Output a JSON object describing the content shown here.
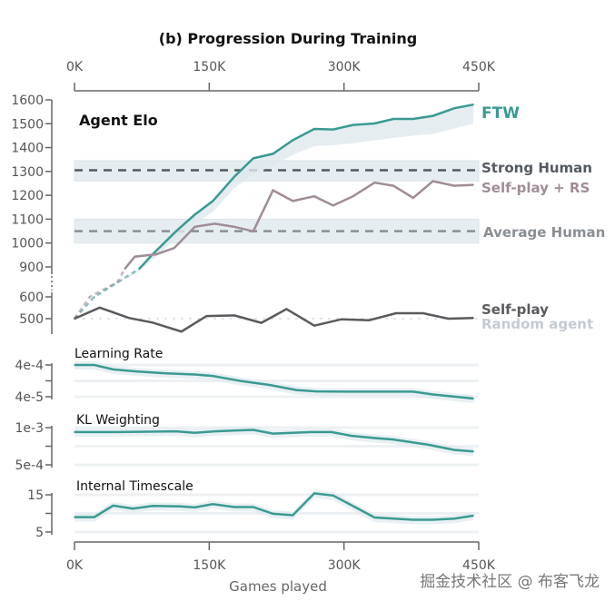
{
  "chart_data": {
    "type": "line",
    "title": "(b) Progression During Training",
    "xlabel": "Games played",
    "x_ticks": [
      "0K",
      "150K",
      "300K",
      "450K"
    ],
    "x_tick_values": [
      0,
      150,
      300,
      450
    ],
    "xlim": [
      0,
      450
    ],
    "x_units": "thousands of games",
    "colors": {
      "ftw": "#3a9a92",
      "selfplay_rs": "#a08c96",
      "selfplay": "#5a5a5e",
      "strong_human": "#555a60",
      "average_human": "#8a8f94",
      "random_agent": "#c4ccd2",
      "band": "#dfe9ee"
    },
    "elo_panel": {
      "title": "Agent Elo",
      "y_ticks": [
        500,
        600,
        900,
        1000,
        1100,
        1200,
        1300,
        1400,
        1500,
        1600
      ],
      "y_axis_break": [
        600,
        900
      ],
      "series": [
        {
          "name": "FTW",
          "x": [
            0,
            22,
            72,
            87,
            113,
            134,
            154,
            178,
            199,
            221,
            243,
            267,
            288,
            310,
            334,
            355,
            377,
            399,
            423,
            444
          ],
          "y": [
            500,
            600,
            880,
            953,
            1049,
            1119,
            1176,
            1278,
            1355,
            1374,
            1431,
            1478,
            1476,
            1495,
            1501,
            1520,
            1520,
            1533,
            1565,
            1580
          ],
          "band_lower": [
            500,
            600,
            860,
            930,
            1020,
            1080,
            1130,
            1230,
            1290,
            1323,
            1370,
            1406,
            1410,
            1418,
            1430,
            1440,
            1450,
            1457,
            1480,
            1501
          ],
          "dashed_until": 72
        },
        {
          "name": "Self-play + RS",
          "x": [
            0,
            17,
            48,
            56,
            67,
            91,
            111,
            134,
            156,
            178,
            199,
            221,
            243,
            267,
            288,
            310,
            334,
            355,
            377,
            399,
            423,
            444
          ],
          "y": [
            500,
            600,
            750,
            880,
            943,
            953,
            979,
            1068,
            1081,
            1068,
            1049,
            1221,
            1176,
            1196,
            1157,
            1196,
            1253,
            1240,
            1189,
            1259,
            1240,
            1244
          ],
          "dashed_until": 56
        },
        {
          "name": "Self-play",
          "x": [
            0,
            28,
            61,
            87,
            119,
            147,
            178,
            208,
            236,
            267,
            297,
            328,
            358,
            388,
            416,
            444
          ],
          "y": [
            500,
            551,
            503,
            482,
            441,
            512,
            515,
            481,
            544,
            468,
            497,
            493,
            525,
            525,
            500,
            503
          ]
        }
      ],
      "reference_lines": [
        {
          "name": "Strong Human",
          "value": 1305,
          "band": [
            1260,
            1345
          ]
        },
        {
          "name": "Average Human",
          "value": 1050,
          "band": [
            1000,
            1100
          ]
        },
        {
          "name": "Random agent",
          "value": 500
        }
      ]
    },
    "lr_panel": {
      "title": "Learning Rate",
      "scale": "log",
      "y_ticks": [
        "4e-4",
        "4e-5"
      ],
      "y_tick_values": [
        0.0004,
        4e-05
      ],
      "x": [
        0,
        22,
        43,
        69,
        100,
        134,
        154,
        186,
        217,
        247,
        269,
        308,
        377,
        399,
        444
      ],
      "y": [
        0.0004,
        0.0004,
        0.00029,
        0.00025,
        0.00022,
        0.0002,
        0.00018,
        0.000124,
        9.4e-05,
        6.5e-05,
        5.9e-05,
        5.8e-05,
        5.8e-05,
        4.7e-05,
        3.5e-05
      ]
    },
    "kl_panel": {
      "title": "KL Weighting",
      "y_ticks": [
        "1e-3",
        "5e-4"
      ],
      "y_tick_values": [
        0.001,
        0.0005
      ],
      "x": [
        0,
        48,
        113,
        134,
        156,
        199,
        221,
        264,
        286,
        308,
        334,
        355,
        394,
        423,
        444
      ],
      "y": [
        0.00094,
        0.00094,
        0.00095,
        0.00093,
        0.00095,
        0.00097,
        0.00092,
        0.00094,
        0.00094,
        0.00089,
        0.00086,
        0.00084,
        0.00077,
        0.0007,
        0.00068
      ]
    },
    "ts_panel": {
      "title": "Internal Timescale",
      "y_ticks": [
        "15",
        "5"
      ],
      "y_tick_values": [
        15,
        5
      ],
      "x": [
        0,
        22,
        43,
        65,
        87,
        117,
        134,
        154,
        178,
        199,
        221,
        243,
        267,
        288,
        334,
        377,
        399,
        423,
        444
      ],
      "y": [
        9,
        9,
        12.1,
        11.3,
        12,
        11.9,
        11.6,
        12.5,
        11.7,
        11.7,
        9.9,
        9.5,
        15.4,
        14.8,
        8.9,
        8.3,
        8.3,
        8.6,
        9.4
      ]
    }
  },
  "watermark": "掘金技术社区 @ 布客飞龙"
}
